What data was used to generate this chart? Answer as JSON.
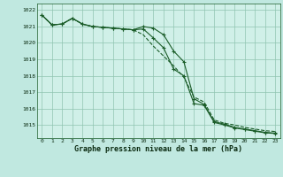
{
  "title": "Graphe pression niveau de la mer (hPa)",
  "background_color": "#c0e8e0",
  "plot_bg_color": "#d0f0e8",
  "grid_color": "#90c4b0",
  "line_color": "#1a5c28",
  "xlim": [
    -0.5,
    23.5
  ],
  "ylim": [
    1014.2,
    1022.4
  ],
  "yticks": [
    1015,
    1016,
    1017,
    1018,
    1019,
    1020,
    1021,
    1022
  ],
  "xticks": [
    0,
    1,
    2,
    3,
    4,
    5,
    6,
    7,
    8,
    9,
    10,
    11,
    12,
    13,
    14,
    15,
    16,
    17,
    18,
    19,
    20,
    21,
    22,
    23
  ],
  "s1_x": [
    0,
    1,
    2,
    3,
    4,
    5,
    6,
    7,
    8,
    9,
    10,
    11,
    12,
    13,
    14,
    15,
    16,
    17,
    18,
    19,
    20,
    21,
    22,
    23
  ],
  "s1_y": [
    1021.7,
    1021.1,
    1021.15,
    1021.5,
    1021.15,
    1021.0,
    1020.95,
    1020.9,
    1020.85,
    1020.8,
    1020.5,
    1019.8,
    1019.2,
    1018.6,
    1017.9,
    1016.7,
    1016.4,
    1015.3,
    1015.1,
    1015.0,
    1014.85,
    1014.75,
    1014.65,
    1014.6
  ],
  "s2_x": [
    0,
    1,
    2,
    3,
    4,
    5,
    6,
    7,
    8,
    9,
    10,
    11,
    12,
    13,
    14,
    15,
    16,
    17,
    18,
    19,
    20,
    21,
    22,
    23
  ],
  "s2_y": [
    1021.7,
    1021.1,
    1021.15,
    1021.5,
    1021.15,
    1021.0,
    1020.95,
    1020.9,
    1020.85,
    1020.8,
    1021.0,
    1020.9,
    1020.5,
    1019.5,
    1018.85,
    1016.6,
    1016.25,
    1015.2,
    1015.05,
    1014.85,
    1014.75,
    1014.65,
    1014.55,
    1014.5
  ],
  "s3_x": [
    0,
    1,
    2,
    3,
    4,
    5,
    6,
    7,
    8,
    9,
    10,
    11,
    12,
    13,
    14,
    15,
    16,
    17,
    18,
    19,
    20,
    21,
    22,
    23
  ],
  "s3_y": [
    1021.7,
    1021.1,
    1021.15,
    1021.5,
    1021.15,
    1021.0,
    1020.95,
    1020.9,
    1020.85,
    1020.8,
    1020.85,
    1020.3,
    1019.7,
    1018.4,
    1018.0,
    1016.3,
    1016.2,
    1015.15,
    1015.0,
    1014.82,
    1014.72,
    1014.62,
    1014.52,
    1014.48
  ]
}
